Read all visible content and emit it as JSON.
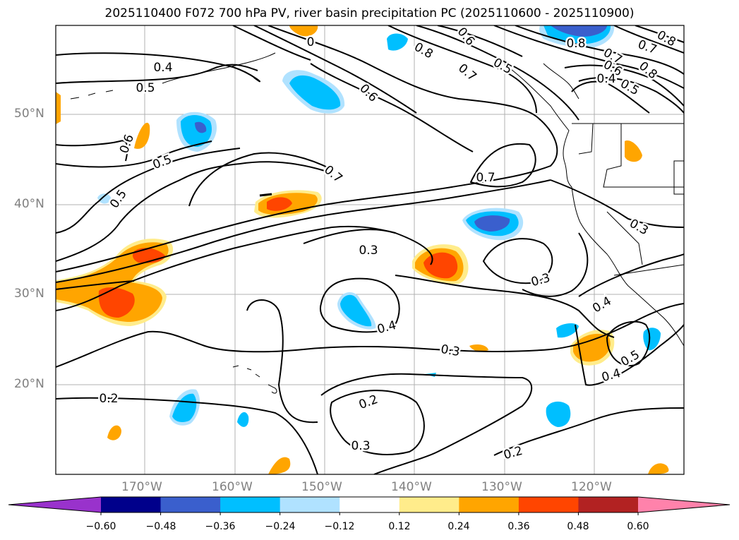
{
  "title": "2025110400 F072 700 hPa PV, river basin precipitation PC (2025110600 - 2025110900)",
  "latitude_labels": [
    "50°N",
    "40°N",
    "30°N",
    "20°N"
  ],
  "longitude_labels": [
    "170°W",
    "160°W",
    "150°W",
    "140°W",
    "130°W",
    "120°W"
  ],
  "contour_labels": [
    {
      "text": "0.4"
    },
    {
      "text": "0.5"
    },
    {
      "text": "0.6"
    },
    {
      "text": "0.5"
    },
    {
      "text": "0.5"
    },
    {
      "text": "0.6"
    },
    {
      "text": "0.7"
    },
    {
      "text": "0.7"
    },
    {
      "text": "0.8"
    },
    {
      "text": "0.7"
    },
    {
      "text": "0.5"
    },
    {
      "text": "0.6"
    },
    {
      "text": "0.8"
    },
    {
      "text": "0.7"
    },
    {
      "text": "0.6"
    },
    {
      "text": "0.4"
    },
    {
      "text": "0.5"
    },
    {
      "text": "0.8"
    },
    {
      "text": "0.7"
    },
    {
      "text": "0.8"
    },
    {
      "text": "0.3"
    },
    {
      "text": "0.3"
    },
    {
      "text": "0.3"
    },
    {
      "text": "0.4"
    },
    {
      "text": "0.3"
    },
    {
      "text": "0.4"
    },
    {
      "text": "0.4"
    },
    {
      "text": "0.5"
    },
    {
      "text": "0.2"
    },
    {
      "text": "0.2"
    },
    {
      "text": "0.3"
    },
    {
      "text": "0.2"
    },
    {
      "text": "0"
    }
  ],
  "colorbar": {
    "ticks": [
      "−0.60",
      "−0.48",
      "−0.36",
      "−0.24",
      "−0.12",
      "0.12",
      "0.24",
      "0.36",
      "0.48",
      "0.60"
    ],
    "colors": [
      "#9932cc",
      "#00008b",
      "#3a5fcd",
      "#00bfff",
      "#b0e2ff",
      "#ffffff",
      "#ffec8b",
      "#ffa500",
      "#ff4500",
      "#b22222",
      "#ff82ab"
    ]
  }
}
